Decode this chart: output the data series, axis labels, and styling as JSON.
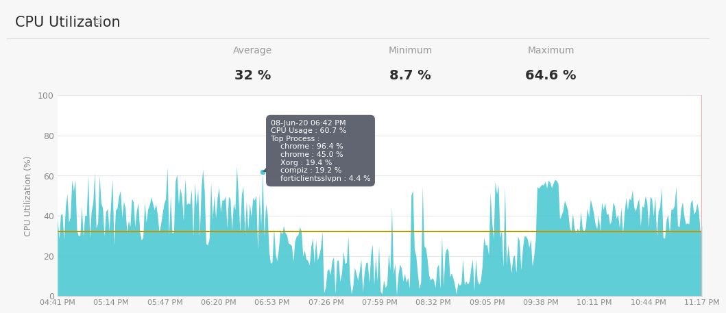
{
  "title": "CPU Utilization",
  "ylabel": "CPU Utilization (%)",
  "avg_label": "Average",
  "min_label": "Minimum",
  "max_label": "Maximum",
  "avg_val": "32 %",
  "min_val": "8.7 %",
  "max_val": "64.6 %",
  "avg_line": 32,
  "ylim": [
    0,
    100
  ],
  "yticks": [
    0,
    20,
    40,
    60,
    80,
    100
  ],
  "xtick_labels": [
    "04:41 PM",
    "05:14 PM",
    "05:47 PM",
    "06:20 PM",
    "06:53 PM",
    "07:26 PM",
    "07:59 PM",
    "08:32 PM",
    "09:05 PM",
    "09:38 PM",
    "10:11 PM",
    "10:44 PM",
    "11:17 PM"
  ],
  "area_color": "#4DC9D2",
  "avg_line_color": "#B8960C",
  "background_color": "#f7f7f7",
  "chart_bg": "#ffffff",
  "grid_color": "#e8e8e8",
  "tooltip_bg": "#555966",
  "tooltip_text_color": "#ffffff",
  "tooltip_title": "08-Jun-20 06:42 PM",
  "tooltip_lines": [
    "CPU Usage : 60.7 %",
    "Top Process :",
    "    chrome : 96.4 %",
    "    chrome : 45.0 %",
    "    Xorg : 19.4 %",
    "    compiz : 19.2 %",
    "    forticlientsslvpn : 4.4 %"
  ],
  "right_border_color": "#e8b4b8",
  "title_fontsize": 15,
  "stats_label_fontsize": 10,
  "stats_val_fontsize": 14
}
